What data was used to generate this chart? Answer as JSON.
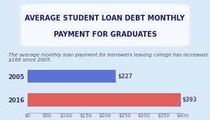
{
  "title_line1": "AVERAGE STUDENT LOAN DEBT MONTHLY",
  "title_line2": "PAYMENT FOR GRADUATES",
  "subtitle": "The average monthly loan payment for borrowers leaving college has increased $166 since 2005.",
  "categories": [
    "2016",
    "2005"
  ],
  "values": [
    393,
    227
  ],
  "bar_colors": [
    "#e05f5f",
    "#5b72d8"
  ],
  "value_labels": [
    "$393",
    "$227"
  ],
  "xlim": [
    0,
    400
  ],
  "xticks": [
    0,
    50,
    100,
    150,
    200,
    250,
    300,
    350,
    400
  ],
  "xtick_labels": [
    "$0",
    "$50",
    "$100",
    "$150",
    "$200",
    "$250",
    "$300",
    "$350",
    "$400"
  ],
  "background_color": "#daeaf7",
  "title_box_color": "#f5f8ff",
  "title_fontsize": 7.0,
  "subtitle_fontsize": 5.0,
  "bar_label_fontsize": 5.5,
  "ytick_fontsize": 6.0,
  "xtick_fontsize": 5.0,
  "title_color": "#1a1a5e",
  "subtitle_color": "#4a4a7a",
  "bar_label_color": "#555577",
  "ytick_color": "#333366"
}
